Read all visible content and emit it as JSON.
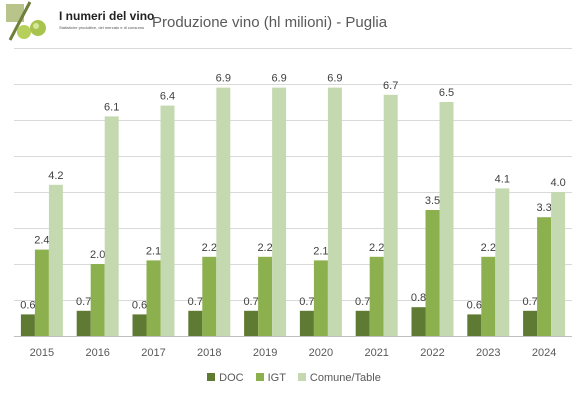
{
  "logo": {
    "name": "I numeri del vino",
    "tagline": "Statistiche produttive, del mercato e di consumo"
  },
  "chart_data": {
    "type": "bar",
    "title": "Produzione vino (hl milioni) - Puglia",
    "xlabel": "",
    "ylabel": "",
    "ylim": [
      0,
      8
    ],
    "grid": true,
    "legend_position": "bottom",
    "categories": [
      "2015",
      "2016",
      "2017",
      "2018",
      "2019",
      "2020",
      "2021",
      "2022",
      "2023",
      "2024"
    ],
    "series": [
      {
        "name": "DOC",
        "color": "#5f7a33",
        "values": [
          0.6,
          0.7,
          0.6,
          0.7,
          0.7,
          0.7,
          0.7,
          0.8,
          0.6,
          0.7
        ]
      },
      {
        "name": "IGT",
        "color": "#8db04f",
        "values": [
          2.4,
          2.0,
          2.1,
          2.2,
          2.2,
          2.1,
          2.2,
          3.5,
          2.2,
          3.3
        ]
      },
      {
        "name": "Comune/Table",
        "color": "#c5d9b1",
        "values": [
          4.2,
          6.1,
          6.4,
          6.9,
          6.9,
          6.9,
          6.7,
          6.5,
          4.1,
          4.0
        ]
      }
    ]
  }
}
